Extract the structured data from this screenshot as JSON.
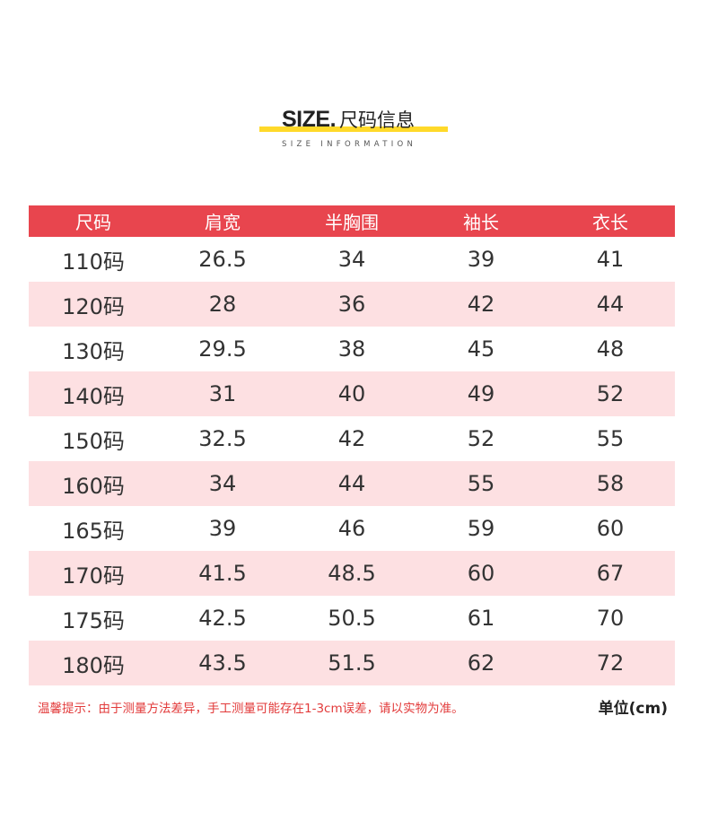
{
  "heading": {
    "title_en": "SIZE.",
    "title_cn": "尺码信息",
    "subtitle": "SIZE INFORMATION",
    "accent_color": "#ffd92a"
  },
  "table": {
    "header_color": "#e8454e",
    "stripe_color": "#fde0e2",
    "columns": [
      "尺码",
      "肩宽",
      "半胸围",
      "袖长",
      "衣长"
    ],
    "rows": [
      [
        "110码",
        "26.5",
        "34",
        "39",
        "41"
      ],
      [
        "120码",
        "28",
        "36",
        "42",
        "44"
      ],
      [
        "130码",
        "29.5",
        "38",
        "45",
        "48"
      ],
      [
        "140码",
        "31",
        "40",
        "49",
        "52"
      ],
      [
        "150码",
        "32.5",
        "42",
        "52",
        "55"
      ],
      [
        "160码",
        "34",
        "44",
        "55",
        "58"
      ],
      [
        "165码",
        "39",
        "46",
        "59",
        "60"
      ],
      [
        "170码",
        "41.5",
        "48.5",
        "60",
        "67"
      ],
      [
        "175码",
        "42.5",
        "50.5",
        "61",
        "70"
      ],
      [
        "180码",
        "43.5",
        "51.5",
        "62",
        "72"
      ]
    ]
  },
  "footer": {
    "note": "温馨提示：由于测量方法差异，手工测量可能存在1-3cm误差，请以实物为准。",
    "note_color": "#e23a3a",
    "unit": "单位(cm)"
  }
}
